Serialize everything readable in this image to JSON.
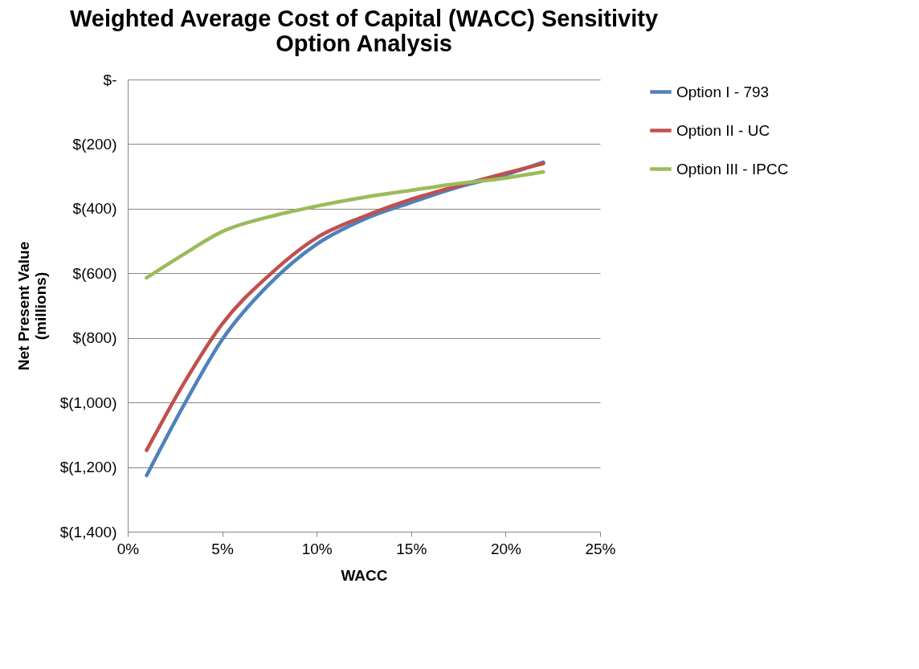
{
  "chart_data": {
    "type": "line",
    "title": [
      "Weighted Average Cost of Capital (WACC) Sensitivity",
      "Option Analysis"
    ],
    "xlabel": "WACC",
    "ylabel": [
      "Net Present Value",
      "(millions)"
    ],
    "x": [
      0.01,
      0.03,
      0.05,
      0.075,
      0.1,
      0.125,
      0.15,
      0.175,
      0.2,
      0.22
    ],
    "series": [
      {
        "name": "Option I - 793",
        "color": "#4f81bd",
        "values": [
          -1226,
          -1005,
          -805,
          -633,
          -510,
          -433,
          -381,
          -333,
          -295,
          -256
        ]
      },
      {
        "name": "Option II - UC",
        "color": "#c0504d",
        "values": [
          -1148,
          -938,
          -757,
          -605,
          -490,
          -424,
          -371,
          -329,
          -290,
          -260
        ]
      },
      {
        "name": "Option III - IPCC",
        "color": "#9bbb59",
        "values": [
          -614,
          -540,
          -471,
          -425,
          -392,
          -365,
          -343,
          -322,
          -305,
          -286
        ]
      }
    ],
    "xlim": [
      0,
      0.25
    ],
    "xticks": [
      {
        "value": 0,
        "label": "0%"
      },
      {
        "value": 0.05,
        "label": "5%"
      },
      {
        "value": 0.1,
        "label": "10%"
      },
      {
        "value": 0.15,
        "label": "15%"
      },
      {
        "value": 0.2,
        "label": "20%"
      },
      {
        "value": 0.25,
        "label": "25%"
      }
    ],
    "ylim": [
      -1400,
      0
    ],
    "yticks": [
      {
        "value": -1400,
        "label": "$(1,400)"
      },
      {
        "value": -1200,
        "label": "$(1,200)"
      },
      {
        "value": -1000,
        "label": "$(1,000)"
      },
      {
        "value": -800,
        "label": "$(800)"
      },
      {
        "value": -600,
        "label": "$(600)"
      },
      {
        "value": -400,
        "label": "$(400)"
      },
      {
        "value": -200,
        "label": "$(200)"
      },
      {
        "value": 0,
        "label": "$-"
      }
    ],
    "grid": "y",
    "legend": "right",
    "marker": "none"
  }
}
